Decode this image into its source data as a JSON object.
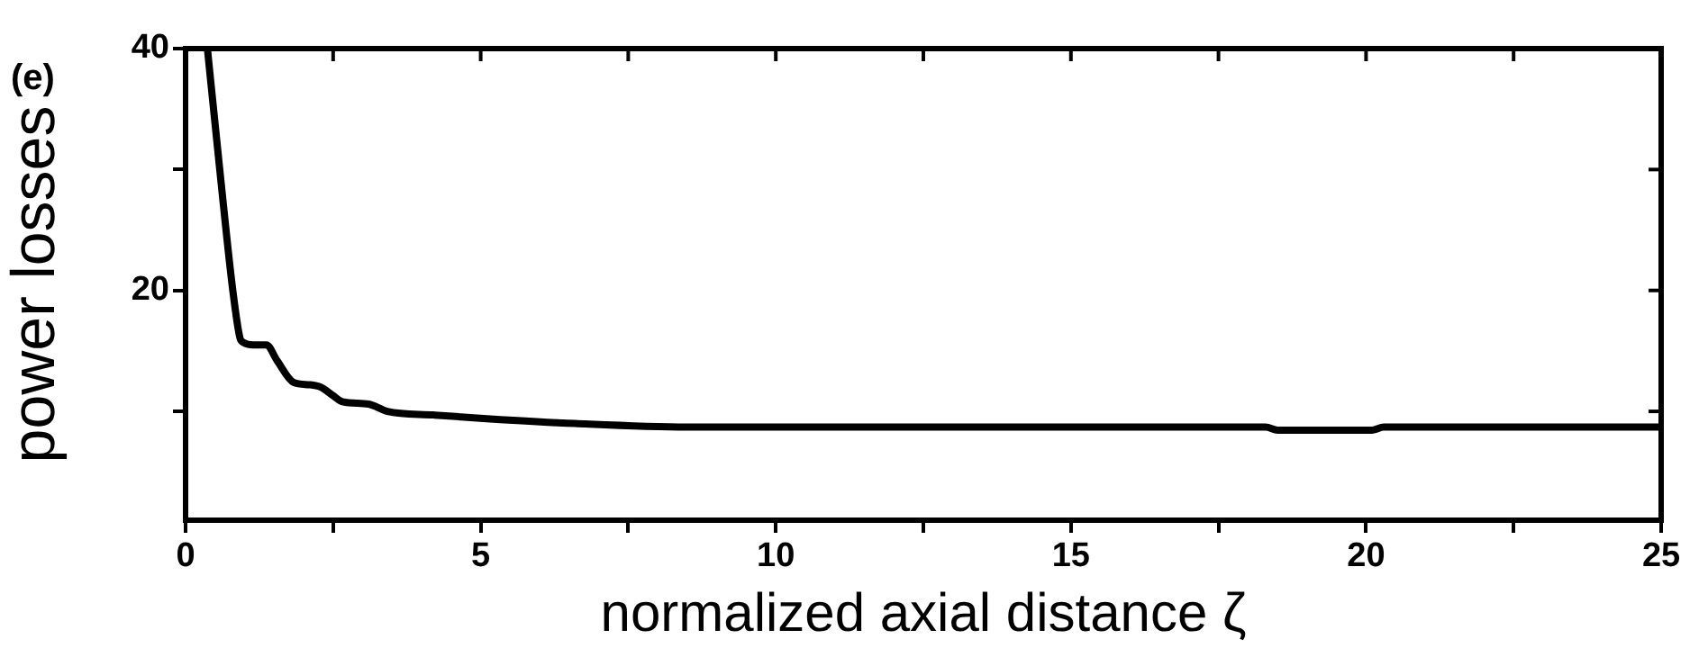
{
  "chart_data": {
    "type": "line",
    "xlabel": "normalized axial distance ζ",
    "ylabel": "power losses",
    "annotations": [
      "(e)"
    ],
    "series": [
      {
        "color": "#000000",
        "x": [
          0.37,
          0.6,
          0.8,
          0.92,
          0.98,
          1.15,
          1.37,
          1.55,
          1.83,
          2.1,
          2.29,
          2.5,
          2.66,
          3.1,
          3.42,
          4.2,
          5.1,
          6.6,
          8.6,
          12,
          15,
          18.3,
          18.5,
          20.1,
          20.3,
          25
        ],
        "values": [
          40,
          29,
          20,
          16.1,
          15.7,
          15.5,
          15.5,
          14.2,
          12.4,
          12.2,
          12,
          11.3,
          10.8,
          10.6,
          10,
          9.7,
          9.4,
          9,
          8.7,
          8.7,
          8.7,
          8.7,
          8.45,
          8.45,
          8.7,
          8.7
        ]
      }
    ],
    "xlim": [
      0,
      25
    ],
    "ylim": [
      1,
      40
    ],
    "xticks": [
      0,
      {
        "value": 2.5,
        "label": null
      },
      5,
      {
        "value": 7.5,
        "label": null
      },
      10,
      {
        "value": 12.5,
        "label": null
      },
      15,
      {
        "value": 17.5,
        "label": null
      },
      20,
      {
        "value": 22.5,
        "label": null
      },
      25
    ],
    "yticks": [
      {
        "value": 10,
        "label": null
      },
      20,
      {
        "value": 30,
        "label": null
      },
      40
    ],
    "marker": "none",
    "line_style": "solid"
  }
}
